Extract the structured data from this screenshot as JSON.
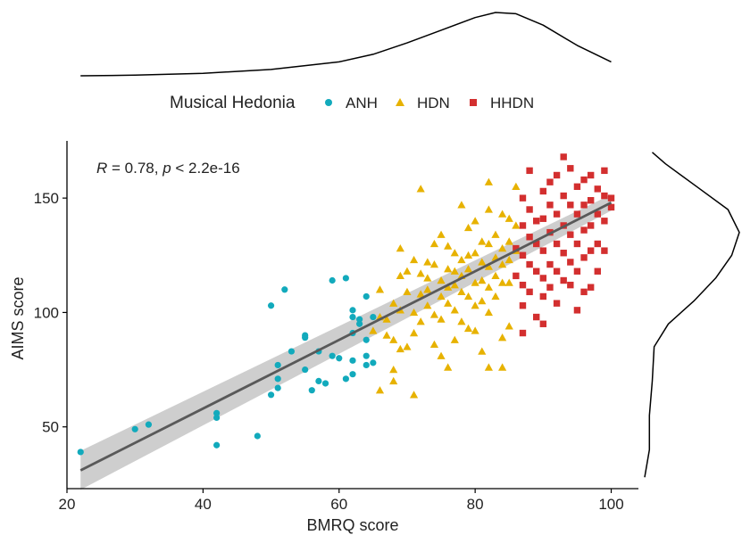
{
  "chart_data": {
    "type": "scatter",
    "annotation": "R = 0.78, p < 2.2e-16",
    "annotation_parts": {
      "r_symbol": "R",
      "r_text": " = 0.78, ",
      "p_symbol": "p",
      "p_text": " < 2.2e-16"
    },
    "xlabel": "BMRQ score",
    "ylabel": "AIMS score",
    "xlim": [
      20,
      104
    ],
    "ylim": [
      23,
      175
    ],
    "xticks": [
      20,
      40,
      60,
      80,
      100
    ],
    "yticks": [
      50,
      100,
      150
    ],
    "legend": {
      "title": "Musical Hedonia",
      "position": "top"
    },
    "regression": {
      "x": [
        22,
        100
      ],
      "y": [
        31,
        148
      ],
      "ci_half_width": [
        8.5,
        3.5
      ],
      "color": "#595959",
      "ci_color": "#bdbdbd"
    },
    "series": [
      {
        "name": "ANH",
        "marker": "circle",
        "color": "#12aabc",
        "points": [
          [
            22,
            39
          ],
          [
            30,
            49
          ],
          [
            32,
            51
          ],
          [
            42,
            56
          ],
          [
            42,
            54
          ],
          [
            42,
            42
          ],
          [
            48,
            46
          ],
          [
            50,
            103
          ],
          [
            50,
            64
          ],
          [
            51,
            67
          ],
          [
            51,
            71
          ],
          [
            51,
            77
          ],
          [
            52,
            110
          ],
          [
            53,
            83
          ],
          [
            55,
            75
          ],
          [
            55,
            89
          ],
          [
            55,
            90
          ],
          [
            56,
            66
          ],
          [
            57,
            83
          ],
          [
            57,
            70
          ],
          [
            58,
            69
          ],
          [
            59,
            114
          ],
          [
            59,
            81
          ],
          [
            60,
            80
          ],
          [
            61,
            115
          ],
          [
            61,
            71
          ],
          [
            62,
            73
          ],
          [
            62,
            79
          ],
          [
            62,
            91
          ],
          [
            62,
            98
          ],
          [
            62,
            101
          ],
          [
            63,
            97
          ],
          [
            63,
            95
          ],
          [
            64,
            107
          ],
          [
            64,
            88
          ],
          [
            64,
            81
          ],
          [
            64,
            77
          ],
          [
            65,
            98
          ],
          [
            65,
            78
          ]
        ]
      },
      {
        "name": "HDN",
        "marker": "triangle",
        "color": "#e7b200",
        "points": [
          [
            65,
            92
          ],
          [
            66,
            110
          ],
          [
            66,
            98
          ],
          [
            66,
            66
          ],
          [
            67,
            97
          ],
          [
            67,
            90
          ],
          [
            68,
            104
          ],
          [
            68,
            88
          ],
          [
            68,
            75
          ],
          [
            68,
            70
          ],
          [
            69,
            128
          ],
          [
            69,
            116
          ],
          [
            69,
            101
          ],
          [
            69,
            84
          ],
          [
            70,
            118
          ],
          [
            70,
            109
          ],
          [
            70,
            85
          ],
          [
            71,
            123
          ],
          [
            71,
            100
          ],
          [
            71,
            91
          ],
          [
            71,
            64
          ],
          [
            72,
            154
          ],
          [
            72,
            117
          ],
          [
            72,
            108
          ],
          [
            72,
            96
          ],
          [
            73,
            122
          ],
          [
            73,
            115
          ],
          [
            73,
            110
          ],
          [
            73,
            103
          ],
          [
            74,
            130
          ],
          [
            74,
            121
          ],
          [
            74,
            99
          ],
          [
            74,
            86
          ],
          [
            75,
            134
          ],
          [
            75,
            114
          ],
          [
            75,
            107
          ],
          [
            75,
            97
          ],
          [
            75,
            81
          ],
          [
            76,
            129
          ],
          [
            76,
            119
          ],
          [
            76,
            111
          ],
          [
            76,
            104
          ],
          [
            76,
            76
          ],
          [
            77,
            126
          ],
          [
            77,
            118
          ],
          [
            77,
            112
          ],
          [
            77,
            101
          ],
          [
            77,
            88
          ],
          [
            78,
            147
          ],
          [
            78,
            123
          ],
          [
            78,
            116
          ],
          [
            78,
            109
          ],
          [
            78,
            96
          ],
          [
            79,
            137
          ],
          [
            79,
            125
          ],
          [
            79,
            119
          ],
          [
            79,
            107
          ],
          [
            79,
            93
          ],
          [
            80,
            140
          ],
          [
            80,
            126
          ],
          [
            80,
            113
          ],
          [
            80,
            103
          ],
          [
            80,
            92
          ],
          [
            81,
            131
          ],
          [
            81,
            122
          ],
          [
            81,
            114
          ],
          [
            81,
            105
          ],
          [
            81,
            83
          ],
          [
            82,
            145
          ],
          [
            82,
            157
          ],
          [
            82,
            130
          ],
          [
            82,
            120
          ],
          [
            82,
            111
          ],
          [
            82,
            100
          ],
          [
            82,
            76
          ],
          [
            83,
            134
          ],
          [
            83,
            124
          ],
          [
            83,
            116
          ],
          [
            83,
            107
          ],
          [
            84,
            143
          ],
          [
            84,
            128
          ],
          [
            84,
            121
          ],
          [
            84,
            113
          ],
          [
            84,
            89
          ],
          [
            84,
            76
          ],
          [
            85,
            141
          ],
          [
            85,
            131
          ],
          [
            85,
            123
          ],
          [
            85,
            113
          ],
          [
            85,
            94
          ],
          [
            86,
            155
          ],
          [
            86,
            138
          ],
          [
            86,
            127
          ]
        ]
      },
      {
        "name": "HHDN",
        "marker": "square",
        "color": "#d32f2f",
        "points": [
          [
            86,
            128
          ],
          [
            86,
            116
          ],
          [
            87,
            91
          ],
          [
            87,
            150
          ],
          [
            87,
            138
          ],
          [
            87,
            125
          ],
          [
            87,
            112
          ],
          [
            87,
            103
          ],
          [
            88,
            162
          ],
          [
            88,
            145
          ],
          [
            88,
            133
          ],
          [
            88,
            121
          ],
          [
            88,
            109
          ],
          [
            89,
            140
          ],
          [
            89,
            130
          ],
          [
            89,
            118
          ],
          [
            89,
            98
          ],
          [
            90,
            153
          ],
          [
            90,
            141
          ],
          [
            90,
            127
          ],
          [
            90,
            115
          ],
          [
            90,
            107
          ],
          [
            90,
            95
          ],
          [
            91,
            157
          ],
          [
            91,
            147
          ],
          [
            91,
            135
          ],
          [
            91,
            121
          ],
          [
            91,
            111
          ],
          [
            92,
            160
          ],
          [
            92,
            143
          ],
          [
            92,
            130
          ],
          [
            92,
            118
          ],
          [
            92,
            104
          ],
          [
            93,
            168
          ],
          [
            93,
            151
          ],
          [
            93,
            138
          ],
          [
            93,
            126
          ],
          [
            93,
            114
          ],
          [
            94,
            163
          ],
          [
            94,
            147
          ],
          [
            94,
            134
          ],
          [
            94,
            122
          ],
          [
            94,
            112
          ],
          [
            95,
            155
          ],
          [
            95,
            143
          ],
          [
            95,
            130
          ],
          [
            95,
            118
          ],
          [
            95,
            101
          ],
          [
            96,
            158
          ],
          [
            96,
            147
          ],
          [
            96,
            136
          ],
          [
            96,
            124
          ],
          [
            96,
            109
          ],
          [
            97,
            160
          ],
          [
            97,
            149
          ],
          [
            97,
            138
          ],
          [
            97,
            127
          ],
          [
            97,
            111
          ],
          [
            98,
            154
          ],
          [
            98,
            143
          ],
          [
            98,
            130
          ],
          [
            98,
            118
          ],
          [
            99,
            162
          ],
          [
            99,
            151
          ],
          [
            99,
            140
          ],
          [
            99,
            127
          ],
          [
            100,
            150
          ],
          [
            100,
            146
          ]
        ]
      }
    ],
    "marginal_x": {
      "x": [
        22,
        30,
        40,
        50,
        60,
        65,
        70,
        75,
        80,
        83,
        86,
        90,
        95,
        100
      ],
      "density": [
        0.0,
        0.01,
        0.04,
        0.1,
        0.22,
        0.34,
        0.52,
        0.72,
        0.92,
        1.0,
        0.98,
        0.8,
        0.48,
        0.22
      ]
    },
    "marginal_y": {
      "y": [
        28,
        40,
        55,
        70,
        85,
        95,
        105,
        115,
        125,
        135,
        145,
        155,
        165,
        170
      ],
      "density": [
        0.0,
        0.05,
        0.05,
        0.08,
        0.1,
        0.25,
        0.52,
        0.75,
        0.92,
        1.0,
        0.88,
        0.55,
        0.22,
        0.08
      ]
    }
  }
}
